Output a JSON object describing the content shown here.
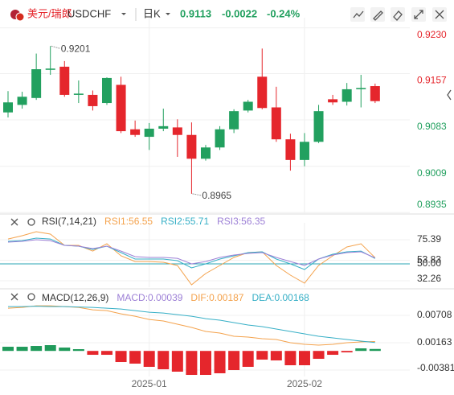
{
  "toolbar": {
    "symbol_name": "美元/瑞郎",
    "symbol": "USDCHF",
    "period": "日K",
    "price": "0.9113",
    "change": "-0.0022",
    "change_pct": "-0.24%"
  },
  "chart_data": [
    {
      "type": "candlestick",
      "up_color": "#22a05f",
      "down_color": "#e5262c",
      "open": [
        0.9095,
        0.9107,
        0.9118,
        0.9163,
        0.9168,
        0.9123,
        0.9123,
        0.911,
        0.9139,
        0.9068,
        0.9056,
        0.9069,
        0.9071,
        0.9059,
        0.9021,
        0.9039,
        0.9068,
        0.9098,
        0.9152,
        0.9103,
        0.9052,
        0.9019,
        0.9048,
        0.9116,
        0.9112,
        0.9132,
        0.9137
      ],
      "high": [
        0.9129,
        0.9128,
        0.9189,
        0.9201,
        0.9177,
        0.9146,
        0.913,
        0.9151,
        0.9152,
        0.9082,
        0.9078,
        0.9101,
        0.9084,
        0.9079,
        0.9043,
        0.9073,
        0.91,
        0.9115,
        0.9197,
        0.9136,
        0.9061,
        0.9062,
        0.9107,
        0.9123,
        0.9142,
        0.9155,
        0.9141
      ],
      "low": [
        0.9087,
        0.9101,
        0.9115,
        0.9155,
        0.912,
        0.911,
        0.9098,
        0.9107,
        0.9062,
        0.9056,
        0.9035,
        0.9065,
        0.9024,
        0.8965,
        0.9018,
        0.9035,
        0.9062,
        0.9095,
        0.91,
        0.9048,
        0.9002,
        0.9009,
        0.9046,
        0.9107,
        0.9106,
        0.9103,
        0.911
      ],
      "close": [
        0.9111,
        0.912,
        0.9164,
        0.9165,
        0.9123,
        0.9125,
        0.9105,
        0.915,
        0.9065,
        0.9059,
        0.9069,
        0.9073,
        0.9059,
        0.9021,
        0.9039,
        0.9068,
        0.9097,
        0.9112,
        0.9102,
        0.9052,
        0.9019,
        0.9048,
        0.9097,
        0.9111,
        0.9132,
        0.9134,
        0.9113
      ],
      "high_label": "0.9201",
      "low_label": "0.8965",
      "ylim": [
        0.8934,
        0.9236
      ],
      "yticks": [
        {
          "value": 0.923,
          "label": "0.9230"
        },
        0.9157,
        0.9083,
        0.9009,
        0.8935
      ],
      "tick_color": "#e5262c",
      "label_color": "#22a05f"
    },
    {
      "type": "line",
      "title": "RSI(7,14,21)",
      "series": [
        {
          "name": "RSI1:56.55",
          "color": "#f4a24c",
          "values": [
            76.2,
            79.6,
            83.9,
            81.3,
            69.5,
            69.5,
            63.5,
            71.2,
            58.5,
            52.5,
            52.5,
            51.7,
            48.3,
            28.0,
            39.9,
            48.3,
            56.8,
            61.9,
            62.7,
            48.3,
            38.2,
            29.7,
            48.3,
            58.5,
            67.8,
            71.2,
            56.55
          ]
        },
        {
          "name": "RSI2:55.71",
          "color": "#36afc6",
          "values": [
            73.7,
            74.5,
            77.1,
            76.2,
            69.5,
            68.6,
            65.2,
            68.6,
            61.9,
            55.1,
            55.1,
            55.1,
            53.4,
            45.8,
            50.0,
            55.1,
            58.5,
            61.9,
            62.7,
            55.1,
            50.0,
            44.1,
            55.1,
            60.2,
            62.7,
            63.5,
            55.71
          ]
        },
        {
          "name": "RSI3:56.35",
          "color": "#9d80d6",
          "values": [
            72.9,
            73.7,
            75.4,
            74.5,
            69.5,
            68.6,
            66.1,
            68.6,
            63.5,
            57.6,
            56.8,
            56.8,
            55.9,
            50.0,
            52.5,
            56.8,
            59.3,
            61.0,
            61.9,
            56.8,
            52.5,
            48.3,
            55.1,
            59.3,
            61.9,
            62.7,
            56.35
          ]
        }
      ],
      "hline": {
        "value": 50,
        "color": "#2aa6b6"
      },
      "ylim": [
        25.5,
        86.4
      ],
      "yticks": [
        75.39,
        53.83,
        {
          "value": 50,
          "label": "50.00"
        },
        32.26
      ]
    },
    {
      "type": "combo",
      "title": "MACD(12,26,9)",
      "categories": [
        null,
        null,
        null,
        null,
        null,
        null,
        null,
        null,
        null,
        null,
        "2025-01",
        null,
        null,
        null,
        null,
        null,
        null,
        null,
        null,
        null,
        null,
        "2025-02",
        null,
        null,
        null,
        null,
        null
      ],
      "series": [
        {
          "name": "MACD:0.00039",
          "color": "#9d80d6",
          "type": "bar",
          "pos_color": "#1f9a5a",
          "neg_color": "#e5262c",
          "values": [
            0.00083,
            0.00083,
            0.00099,
            0.00115,
            0.00067,
            0.00035,
            -0.00077,
            -0.00077,
            -0.00221,
            -0.00253,
            -0.00317,
            -0.00365,
            -0.00413,
            -0.00477,
            -0.00477,
            -0.00445,
            -0.00381,
            -0.00317,
            -0.00173,
            -0.00189,
            -0.00285,
            -0.00285,
            -0.00157,
            -0.00077,
            -0.00029,
            0.00051,
            0.00039
          ]
        },
        {
          "name": "DIF:0.00187",
          "color": "#f4a24c",
          "type": "line",
          "values": [
            0.00851,
            0.00867,
            0.00899,
            0.00899,
            0.00883,
            0.00867,
            0.00819,
            0.00803,
            0.00739,
            0.00691,
            0.00627,
            0.00595,
            0.00531,
            0.00467,
            0.00387,
            0.00355,
            0.00291,
            0.00275,
            0.00243,
            0.00227,
            0.00163,
            0.00131,
            0.00115,
            0.00131,
            0.00163,
            0.00179,
            0.00187
          ]
        },
        {
          "name": "DEA:0.00168",
          "color": "#36afc6",
          "type": "line",
          "values": [
            0.00883,
            0.00883,
            0.00891,
            0.00883,
            0.00883,
            0.00875,
            0.00867,
            0.00851,
            0.00835,
            0.00803,
            0.00771,
            0.00755,
            0.00723,
            0.00691,
            0.00643,
            0.00611,
            0.00563,
            0.00515,
            0.00483,
            0.00435,
            0.00387,
            0.00339,
            0.00291,
            0.00259,
            0.00227,
            0.00195,
            0.00168
          ]
        }
      ],
      "ylim": [
        -0.00509,
        0.009
      ],
      "yticks": [
        0.00708,
        0.00163,
        -0.00381
      ]
    }
  ]
}
